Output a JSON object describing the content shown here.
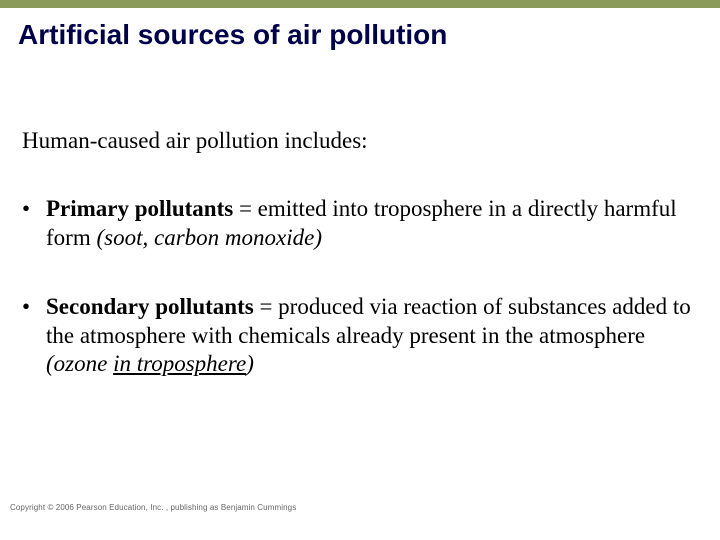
{
  "accent_bar_color": "#8a9a5b",
  "title_color": "#00004d",
  "text_color": "#000000",
  "background_color": "#ffffff",
  "title": "Artificial sources of air pollution",
  "intro": "Human-caused air pollution includes:",
  "bullet_mark": "•",
  "bullets": [
    {
      "term": "Primary pollutants",
      "eq": " = emitted into troposphere in a directly harmful form ",
      "example_open": "(",
      "example": "soot, carbon monoxide",
      "example_close": ")"
    },
    {
      "term": "Secondary pollutants",
      "eq": " = produced via reaction of substances added to the atmosphere with chemicals already present in the atmosphere ",
      "example_open": "(",
      "example_pre": "ozone ",
      "example_ul": "in troposphere",
      "example_close": ")"
    }
  ],
  "copyright": "Copyright © 2006 Pearson Education, Inc. , publishing as Benjamin Cummings"
}
